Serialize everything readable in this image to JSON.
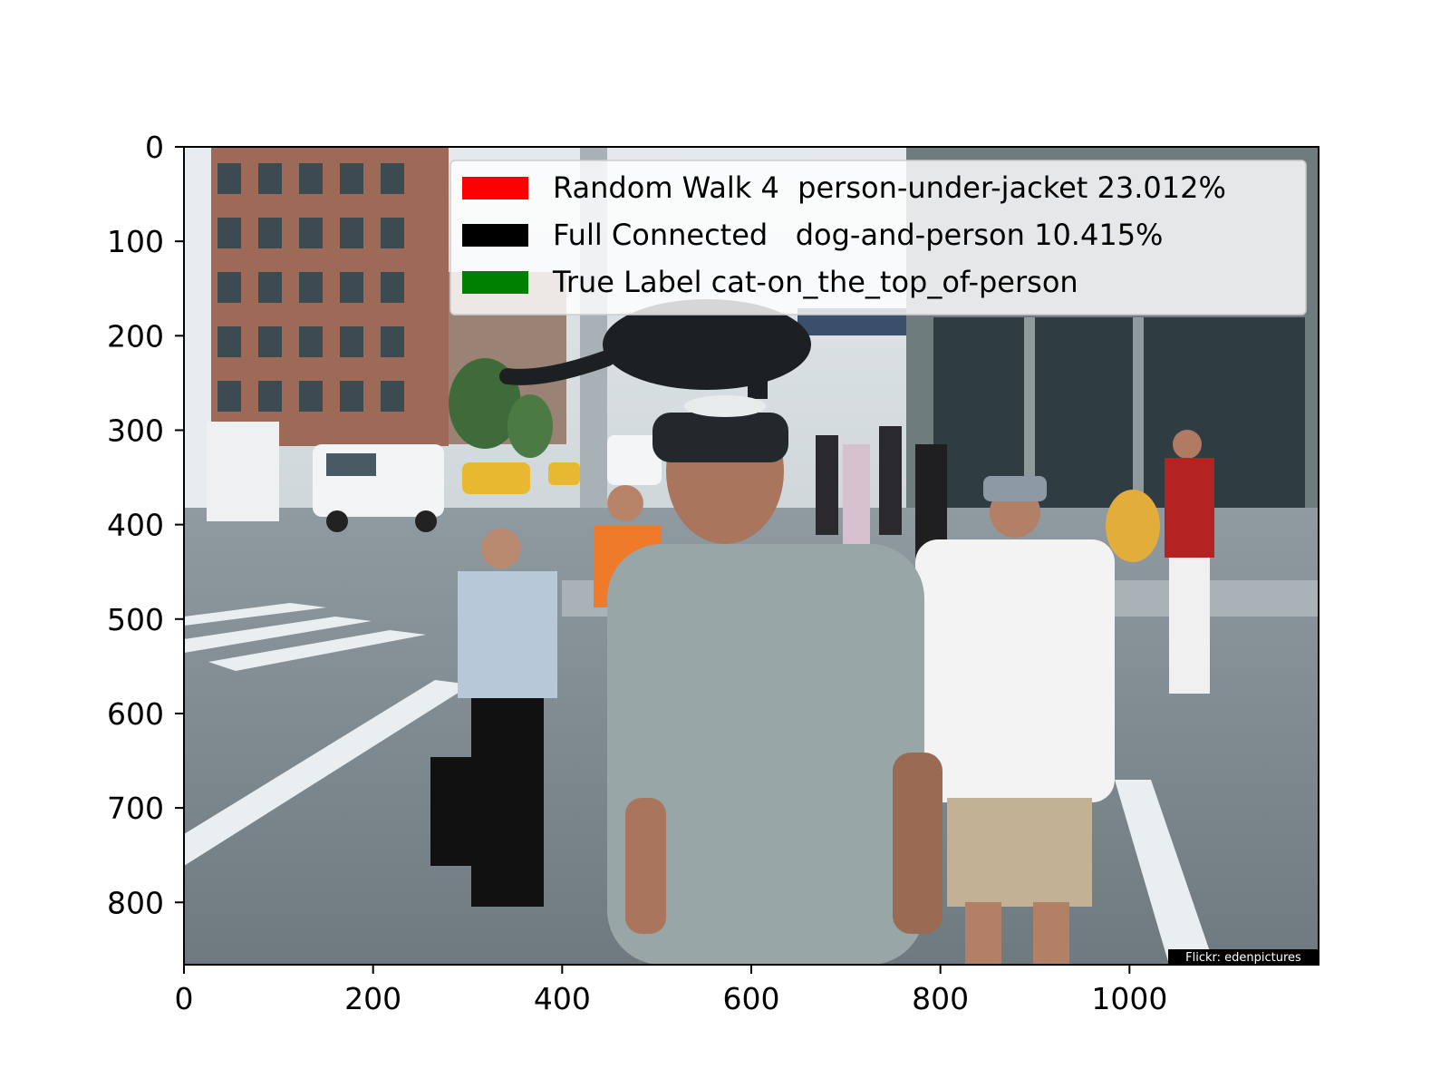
{
  "figure": {
    "x_axis": {
      "ticks": [
        0,
        200,
        400,
        600,
        800,
        1000
      ],
      "range": [
        0,
        1200
      ]
    },
    "y_axis": {
      "ticks": [
        0,
        100,
        200,
        300,
        400,
        500,
        600,
        700,
        800
      ],
      "range": [
        0,
        866
      ],
      "inverted": true
    },
    "legend": {
      "placement": "top-right",
      "entries": [
        {
          "swatch_color": "#ff0000",
          "label": "Random Walk 4  person-under-jacket 23.012%"
        },
        {
          "swatch_color": "#000000",
          "label": "Full Connected   dog-and-person 10.415%"
        },
        {
          "swatch_color": "#008000",
          "label": "True Label cat-on_the_top_of-person"
        }
      ]
    },
    "credit": "Flickr:  edenpictures"
  }
}
